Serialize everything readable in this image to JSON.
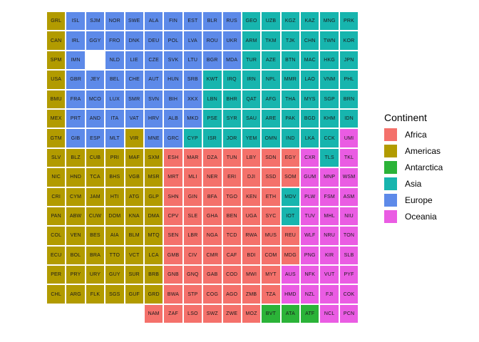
{
  "legend": {
    "title": "Continent",
    "items": [
      {
        "label": "Africa",
        "continent": "africa"
      },
      {
        "label": "Americas",
        "continent": "americas"
      },
      {
        "label": "Antarctica",
        "continent": "antarctica"
      },
      {
        "label": "Asia",
        "continent": "asia"
      },
      {
        "label": "Europe",
        "continent": "europe"
      },
      {
        "label": "Oceania",
        "continent": "oceania"
      }
    ]
  },
  "colors": {
    "africa": "#F4716B",
    "americas": "#B29B00",
    "antarctica": "#2BB338",
    "asia": "#17B5AE",
    "europe": "#5D8AE9",
    "oceania": "#EA5CE3",
    "tile_text": "#1A1A1A",
    "background": "#FFFFFF"
  },
  "chart_data": {
    "type": "heatmap",
    "subtype": "world-tile-grid-map",
    "title": "",
    "legend_title": "Continent",
    "legend_position": "right",
    "categories": [
      "Africa",
      "Americas",
      "Antarctica",
      "Asia",
      "Europe",
      "Oceania"
    ],
    "grid_cols": 16,
    "grid_rows": 16,
    "cell_format": "ISO3:continent",
    "cells": [
      [
        "GRL:americas",
        "ISL:europe",
        "SJM:europe",
        "NOR:europe",
        "SWE:europe",
        "ALA:europe",
        "FIN:europe",
        "EST:europe",
        "BLR:europe",
        "RUS:europe",
        "GEO:asia",
        "UZB:asia",
        "KGZ:asia",
        "KAZ:asia",
        "MNG:asia",
        "PRK:asia"
      ],
      [
        "CAN:americas",
        "IRL:europe",
        "GGY:europe",
        "FRO:europe",
        "DNK:europe",
        "DEU:europe",
        "POL:europe",
        "LVA:europe",
        "ROU:europe",
        "UKR:europe",
        "ARM:asia",
        "TKM:asia",
        "TJK:asia",
        "CHN:asia",
        "TWN:asia",
        "KOR:asia"
      ],
      [
        "SPM:americas",
        "IMN:europe",
        null,
        "NLD:europe",
        "LIE:europe",
        "CZE:europe",
        "SVK:europe",
        "LTU:europe",
        "BGR:europe",
        "MDA:europe",
        "TUR:asia",
        "AZE:asia",
        "BTN:asia",
        "MAC:asia",
        "HKG:asia",
        "JPN:asia"
      ],
      [
        "USA:americas",
        "GBR:europe",
        "JEY:europe",
        "BEL:europe",
        "CHE:europe",
        "AUT:europe",
        "HUN:europe",
        "SRB:europe",
        "KWT:asia",
        "IRQ:asia",
        "IRN:asia",
        "NPL:asia",
        "MMR:asia",
        "LAO:asia",
        "VNM:asia",
        "PHL:asia"
      ],
      [
        "BMU:americas",
        "FRA:europe",
        "MCO:europe",
        "LUX:europe",
        "SMR:europe",
        "SVN:europe",
        "BIH:europe",
        "XKX:europe",
        "LBN:asia",
        "BHR:asia",
        "QAT:asia",
        "AFG:asia",
        "THA:asia",
        "MYS:asia",
        "SGP:asia",
        "BRN:asia"
      ],
      [
        "MEX:americas",
        "PRT:europe",
        "AND:europe",
        "ITA:europe",
        "VAT:europe",
        "HRV:europe",
        "ALB:europe",
        "MKD:europe",
        "PSE:asia",
        "SYR:asia",
        "SAU:asia",
        "ARE:asia",
        "PAK:asia",
        "BGD:asia",
        "KHM:asia",
        "IDN:asia"
      ],
      [
        "GTM:americas",
        "GIB:europe",
        "ESP:europe",
        "MLT:europe",
        "VIR:americas",
        "MNE:europe",
        "GRC:europe",
        "CYP:asia",
        "ISR:asia",
        "JOR:asia",
        "YEM:asia",
        "OMN:asia",
        "IND:asia",
        "LKA:asia",
        "CCK:asia",
        "UMI:oceania"
      ],
      [
        "SLV:americas",
        "BLZ:americas",
        "CUB:americas",
        "PRI:americas",
        "MAF:americas",
        "SXM:americas",
        "ESH:africa",
        "MAR:africa",
        "DZA:africa",
        "TUN:africa",
        "LBY:africa",
        "SDN:africa",
        "EGY:africa",
        "CXR:oceania",
        "TLS:asia",
        "TKL:oceania"
      ],
      [
        "NIC:americas",
        "HND:americas",
        "TCA:americas",
        "BHS:americas",
        "VGB:americas",
        "MSR:americas",
        "MRT:africa",
        "MLI:africa",
        "NER:africa",
        "ERI:africa",
        "DJI:africa",
        "SSD:africa",
        "SOM:africa",
        "GUM:oceania",
        "MNP:oceania",
        "WSM:oceania"
      ],
      [
        "CRI:americas",
        "CYM:americas",
        "JAM:americas",
        "HTI:americas",
        "ATG:americas",
        "GLP:americas",
        "SHN:africa",
        "GIN:africa",
        "BFA:africa",
        "TGO:africa",
        "KEN:africa",
        "ETH:africa",
        "MDV:asia",
        "PLW:oceania",
        "FSM:oceania",
        "ASM:oceania"
      ],
      [
        "PAN:americas",
        "ABW:americas",
        "CUW:americas",
        "DOM:americas",
        "KNA:americas",
        "DMA:americas",
        "CPV:africa",
        "SLE:africa",
        "GHA:africa",
        "BEN:africa",
        "UGA:africa",
        "SYC:africa",
        "IOT:asia",
        "TUV:oceania",
        "MHL:oceania",
        "NIU:oceania"
      ],
      [
        "COL:americas",
        "VEN:americas",
        "BES:americas",
        "AIA:americas",
        "BLM:americas",
        "MTQ:americas",
        "SEN:africa",
        "LBR:africa",
        "NGA:africa",
        "TCD:africa",
        "RWA:africa",
        "MUS:africa",
        "REU:africa",
        "WLF:oceania",
        "NRU:oceania",
        "TON:oceania"
      ],
      [
        "ECU:americas",
        "BOL:americas",
        "BRA:americas",
        "TTO:americas",
        "VCT:americas",
        "LCA:americas",
        "GMB:africa",
        "CIV:africa",
        "CMR:africa",
        "CAF:africa",
        "BDI:africa",
        "COM:africa",
        "MDG:africa",
        "PNG:oceania",
        "KIR:oceania",
        "SLB:oceania"
      ],
      [
        "PER:americas",
        "PRY:americas",
        "URY:americas",
        "GUY:americas",
        "SUR:americas",
        "BRB:americas",
        "GNB:africa",
        "GNQ:africa",
        "GAB:africa",
        "COD:africa",
        "MWI:africa",
        "MYT:africa",
        "AUS:oceania",
        "NFK:oceania",
        "VUT:oceania",
        "PYF:oceania"
      ],
      [
        "CHL:americas",
        "ARG:americas",
        "FLK:americas",
        "SGS:americas",
        "GUF:americas",
        "GRD:americas",
        "BWA:africa",
        "STP:africa",
        "COG:africa",
        "AGO:africa",
        "ZMB:africa",
        "TZA:africa",
        "HMD:oceania",
        "NZL:oceania",
        "FJI:oceania",
        "COK:oceania"
      ],
      [
        null,
        null,
        null,
        null,
        null,
        "NAM:africa",
        "ZAF:africa",
        "LSO:africa",
        "SWZ:africa",
        "ZWE:africa",
        "MOZ:africa",
        "BVT:antarctica",
        "ATA:antarctica",
        "ATF:antarctica",
        "NCL:oceania",
        "PCN:oceania"
      ]
    ]
  }
}
